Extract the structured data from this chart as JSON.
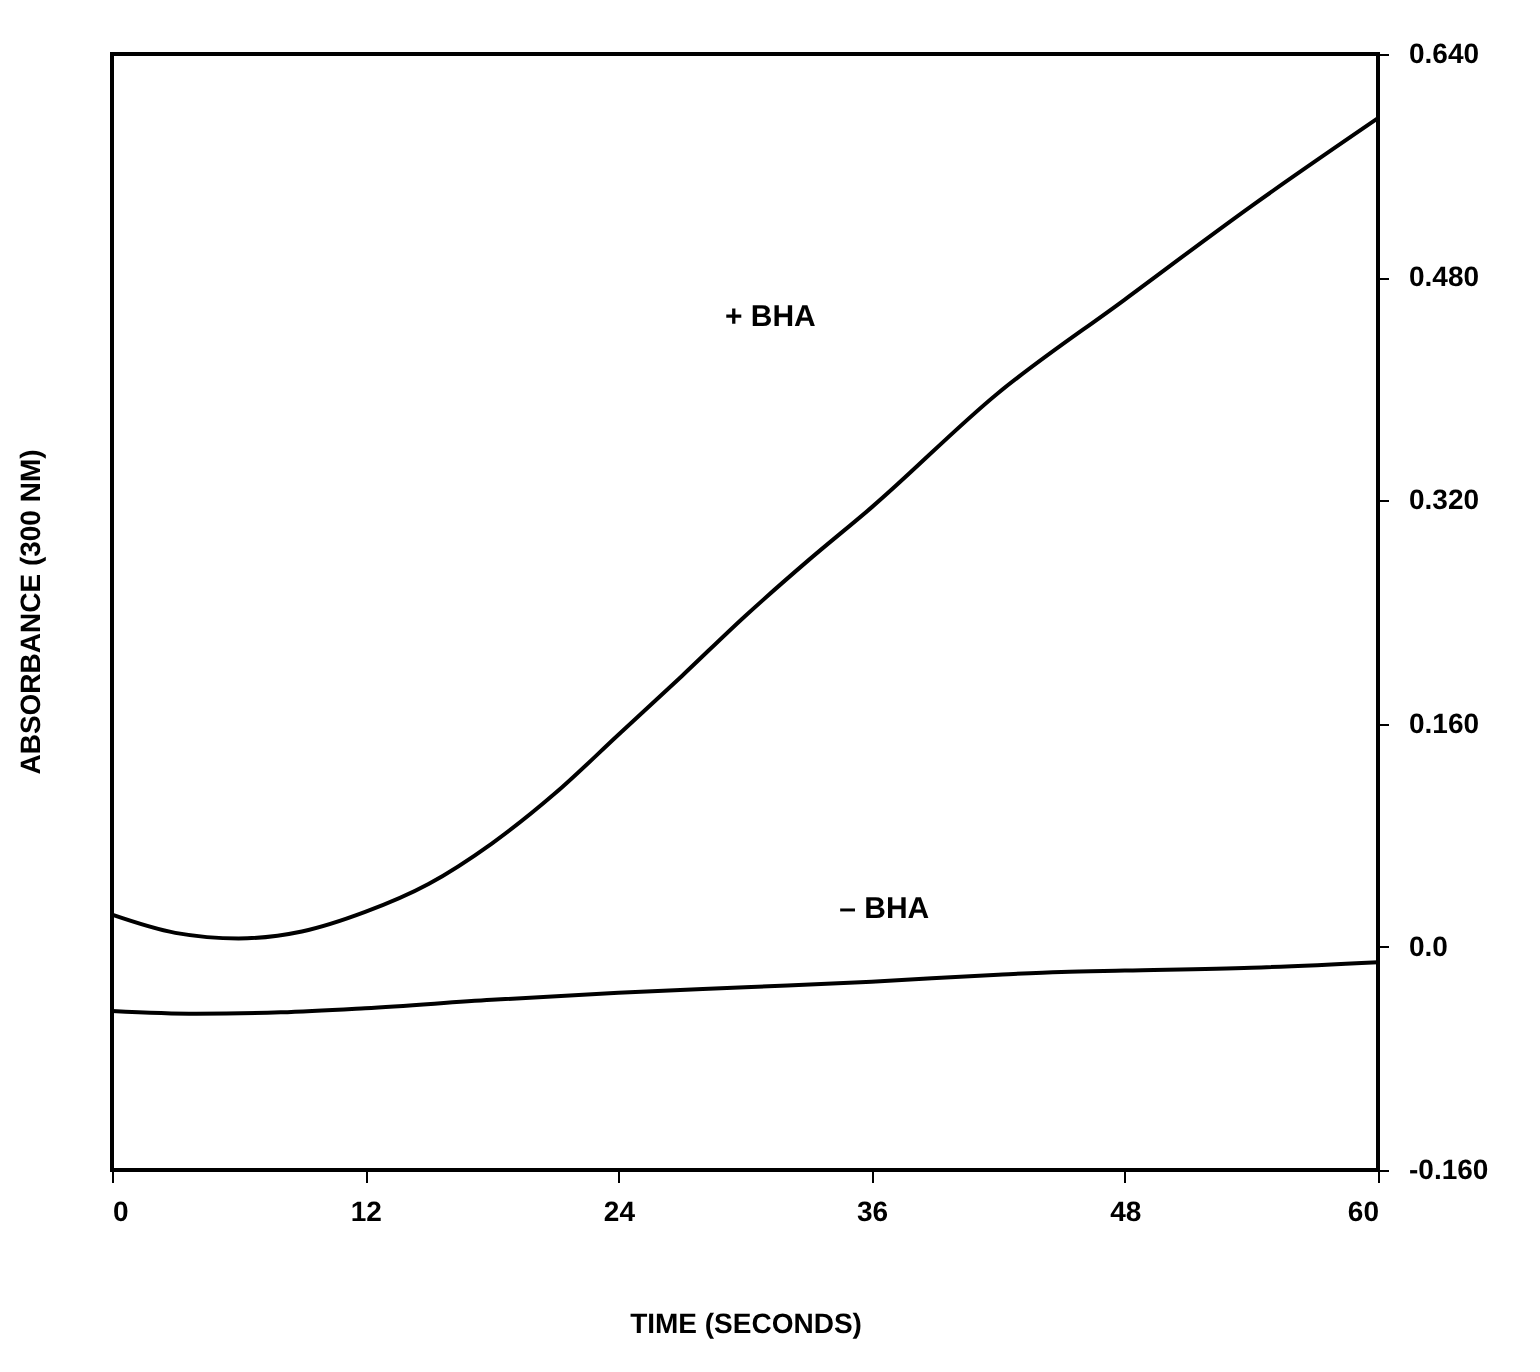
{
  "chart_data": {
    "type": "line",
    "xlabel": "TIME (SECONDS)",
    "ylabel": "ABSORBANCE (300 NM)",
    "xlim": [
      0,
      60
    ],
    "xticks": [
      0,
      12,
      24,
      36,
      48,
      60
    ],
    "ylim": [
      -0.16,
      0.64
    ],
    "yticks": [
      {
        "value": -0.16,
        "label": "-0.160"
      },
      {
        "value": 0,
        "label": "0.0"
      },
      {
        "value": 0.16,
        "label": "0.160"
      },
      {
        "value": 0.32,
        "label": "0.320"
      },
      {
        "value": 0.48,
        "label": "0.480"
      },
      {
        "value": 0.64,
        "label": "0.640"
      }
    ],
    "grid": false,
    "series": [
      {
        "color": "#000000",
        "x": [
          0,
          3,
          6,
          9,
          12,
          15,
          18,
          21,
          24,
          27,
          30,
          33,
          36,
          42,
          48,
          54,
          60
        ],
        "values": [
          0.023,
          0.01,
          0.006,
          0.011,
          0.025,
          0.045,
          0.074,
          0.11,
          0.152,
          0.194,
          0.237,
          0.277,
          0.315,
          0.397,
          0.464,
          0.531,
          0.594
        ]
      },
      {
        "color": "#000000",
        "x": [
          0,
          4,
          8,
          12,
          18,
          24,
          30,
          36,
          42,
          45,
          48,
          54,
          60
        ],
        "values": [
          -0.046,
          -0.048,
          -0.047,
          -0.044,
          -0.038,
          -0.033,
          -0.029,
          -0.025,
          -0.02,
          -0.018,
          -0.017,
          -0.015,
          -0.011
        ]
      }
    ],
    "annotations": [
      "+  BHA",
      "–  BHA"
    ]
  }
}
